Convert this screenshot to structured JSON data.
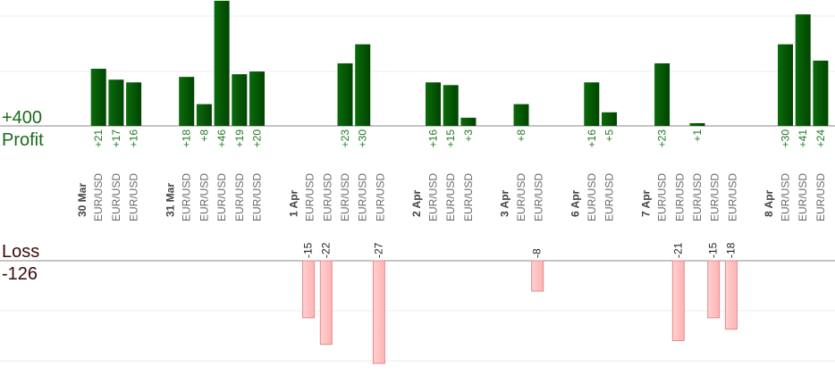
{
  "chart_data": {
    "type": "bar",
    "profit_label": "Profit",
    "profit_total": "+400",
    "loss_label": "Loss",
    "loss_total": "-126",
    "pair": "EUR/USD",
    "colors": {
      "profit": "#0b6b0b",
      "profit_dark": "#004400",
      "loss": "#ffb3b3",
      "loss_border": "#e38a8a",
      "axis": "#888888",
      "grid": "#eeeeee"
    },
    "days": [
      {
        "date": "30 Mar",
        "trades": [
          21,
          17,
          16
        ]
      },
      {
        "date": "31 Mar",
        "trades": [
          18,
          8,
          46,
          19,
          20
        ]
      },
      {
        "date": "1 Apr",
        "trades": [
          -15,
          -22,
          23,
          30,
          -27
        ]
      },
      {
        "date": "2 Apr",
        "trades": [
          16,
          15,
          3
        ]
      },
      {
        "date": "3 Apr",
        "trades": [
          8,
          -8
        ]
      },
      {
        "date": "6 Apr",
        "trades": [
          16,
          5
        ]
      },
      {
        "date": "7 Apr",
        "trades": [
          23,
          -21,
          1,
          -15,
          -18
        ]
      },
      {
        "date": "8 Apr",
        "trades": [
          30,
          41,
          24
        ]
      }
    ]
  }
}
